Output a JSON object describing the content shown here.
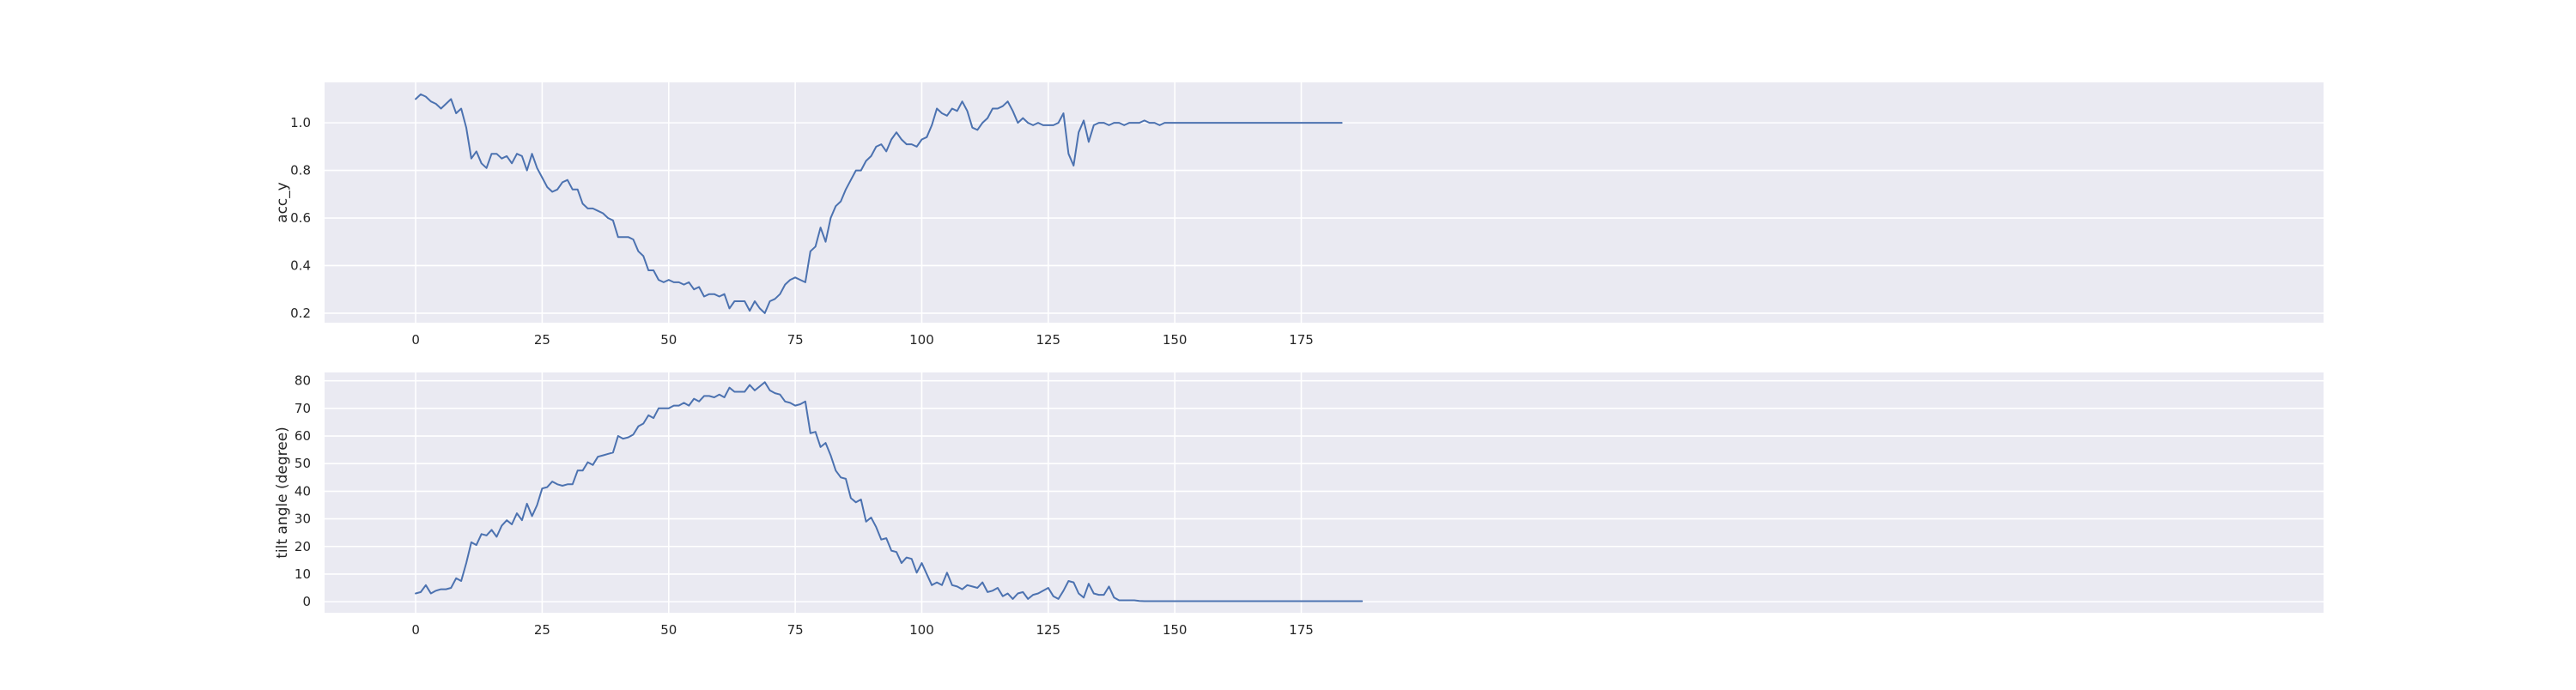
{
  "chart_data": [
    {
      "type": "line",
      "ylabel": "acc_y",
      "xlabel": "",
      "xlim": [
        -18,
        377
      ],
      "ylim": [
        0.16,
        1.17
      ],
      "xticks": [
        0,
        25,
        50,
        75,
        100,
        125,
        150,
        175
      ],
      "yticks": [
        0.2,
        0.4,
        0.6,
        0.8,
        1.0
      ],
      "ytick_labels": [
        "0.2",
        "0.4",
        "0.6",
        "0.8",
        "1.0"
      ],
      "grid": true,
      "series": [
        {
          "color": "#4c72b0",
          "values": [
            1.1,
            1.12,
            1.11,
            1.09,
            1.08,
            1.06,
            1.08,
            1.1,
            1.04,
            1.06,
            0.98,
            0.85,
            0.88,
            0.83,
            0.81,
            0.87,
            0.87,
            0.85,
            0.86,
            0.83,
            0.87,
            0.86,
            0.8,
            0.87,
            0.81,
            0.77,
            0.73,
            0.71,
            0.72,
            0.75,
            0.76,
            0.72,
            0.72,
            0.66,
            0.64,
            0.64,
            0.63,
            0.62,
            0.6,
            0.59,
            0.52,
            0.52,
            0.52,
            0.51,
            0.46,
            0.44,
            0.38,
            0.38,
            0.34,
            0.33,
            0.34,
            0.33,
            0.33,
            0.32,
            0.33,
            0.3,
            0.31,
            0.27,
            0.28,
            0.28,
            0.27,
            0.28,
            0.22,
            0.25,
            0.25,
            0.25,
            0.21,
            0.25,
            0.22,
            0.2,
            0.25,
            0.26,
            0.28,
            0.32,
            0.34,
            0.35,
            0.34,
            0.33,
            0.46,
            0.48,
            0.56,
            0.5,
            0.6,
            0.65,
            0.67,
            0.72,
            0.76,
            0.8,
            0.8,
            0.84,
            0.86,
            0.9,
            0.91,
            0.88,
            0.93,
            0.96,
            0.93,
            0.91,
            0.91,
            0.9,
            0.93,
            0.94,
            0.99,
            1.06,
            1.04,
            1.03,
            1.06,
            1.05,
            1.09,
            1.05,
            0.98,
            0.97,
            1.0,
            1.02,
            1.06,
            1.06,
            1.07,
            1.09,
            1.05,
            1.0,
            1.02,
            1.0,
            0.99,
            1.0,
            0.99,
            0.99,
            0.99,
            1.0,
            1.04,
            0.87,
            0.82,
            0.96,
            1.01,
            0.92,
            0.99,
            1.0,
            1.0,
            0.99,
            1.0,
            1.0,
            0.99,
            1.0,
            1.0,
            1.0,
            1.01,
            1.0,
            1.0,
            0.99,
            1.0,
            1.0,
            1.0,
            1.0,
            1.0,
            1.0,
            1.0,
            1.0,
            1.0,
            1.0,
            1.0,
            1.0,
            1.0,
            1.0,
            1.0,
            1.0,
            1.0,
            1.0,
            1.0,
            1.0,
            1.0,
            1.0,
            1.0,
            1.0,
            1.0,
            1.0,
            1.0,
            1.0,
            1.0,
            1.0,
            1.0,
            1.0,
            1.0,
            1.0,
            1.0,
            1.0
          ]
        }
      ]
    },
    {
      "type": "line",
      "ylabel": "tilt angle (degree)",
      "xlabel": "",
      "xlim": [
        -18,
        377
      ],
      "ylim": [
        -4,
        83
      ],
      "xticks": [
        0,
        25,
        50,
        75,
        100,
        125,
        150,
        175
      ],
      "yticks": [
        0,
        10,
        20,
        30,
        40,
        50,
        60,
        70,
        80
      ],
      "ytick_labels": [
        "0",
        "10",
        "20",
        "30",
        "40",
        "50",
        "60",
        "70",
        "80"
      ],
      "grid": true,
      "series": [
        {
          "color": "#4c72b0",
          "values": [
            3,
            3.5,
            6,
            3,
            4,
            4.5,
            4.5,
            5,
            8.5,
            7.5,
            14,
            21.5,
            20.5,
            24.5,
            24,
            26,
            23.5,
            27.5,
            29.5,
            28,
            32,
            29.5,
            35.5,
            31,
            35,
            41,
            41.5,
            43.5,
            42.5,
            42,
            42.5,
            42.5,
            47.5,
            47.5,
            50.5,
            49.5,
            52.5,
            53,
            53.5,
            54,
            60,
            59,
            59.5,
            60.5,
            63.5,
            64.5,
            67.5,
            66.5,
            70,
            70,
            70,
            71,
            71,
            72,
            71,
            73.5,
            72.5,
            74.5,
            74.5,
            74,
            75,
            74,
            77.5,
            76,
            76,
            76,
            78.5,
            76.5,
            78,
            79.5,
            76.5,
            75.5,
            75,
            72.5,
            72,
            71,
            71.5,
            72.5,
            61,
            61.5,
            56,
            57.5,
            53,
            47.5,
            45,
            44.5,
            37.5,
            36,
            37,
            29,
            30.5,
            27,
            22.5,
            23,
            18.5,
            18,
            14,
            16,
            15.5,
            10.5,
            14,
            10,
            6,
            7,
            6,
            10.5,
            6,
            5.5,
            4.5,
            6,
            5.5,
            5,
            7,
            3.5,
            4,
            5,
            2,
            3,
            1,
            3,
            3.5,
            1,
            2.5,
            3,
            4,
            5,
            2,
            1,
            4,
            7.5,
            7,
            3,
            1.5,
            6.5,
            3,
            2.5,
            2.5,
            5.5,
            1.5,
            0.5,
            0.5,
            0.5,
            0.5,
            0.3,
            0.2,
            0.2,
            0.2,
            0.2,
            0.2,
            0.2,
            0.2,
            0.2,
            0.2,
            0.2,
            0.2,
            0.2,
            0.2,
            0.2,
            0.2,
            0.2,
            0.2,
            0.2,
            0.2,
            0.2,
            0.2,
            0.2,
            0.2,
            0.2,
            0.2,
            0.2,
            0.2,
            0.2,
            0.2,
            0.2,
            0.2,
            0.2,
            0.2,
            0.2,
            0.2,
            0.2,
            0.2,
            0.2,
            0.2,
            0.2,
            0.2,
            0.2,
            0.2,
            0.2
          ]
        }
      ]
    }
  ]
}
